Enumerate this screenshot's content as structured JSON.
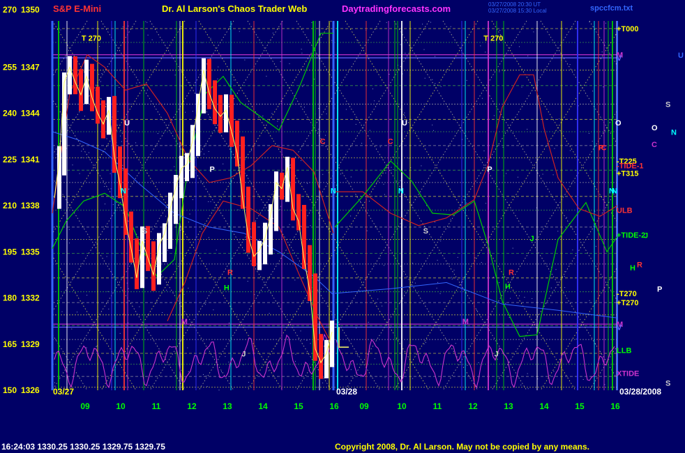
{
  "header": {
    "product": "S&P E-Mini",
    "title": "Dr. Al Larson's Chaos Trader Web",
    "site": "Daytradingforecasts.com",
    "timestamp_1": "03/27/2008 20:30 UT",
    "timestamp_2": "03/27/2008 15:30 Local",
    "file": "spccfcm.txt"
  },
  "footer": {
    "quote": "16:24:03  1330.25 1330.25 1329.75 1329.75",
    "copyright": "Copyright 2008, Dr. Al Larson. May not be copied by any means."
  },
  "chart_data": {
    "type": "line",
    "y_axis": {
      "range": [
        1326,
        1350
      ],
      "price_ticks": [
        "1350",
        "1347",
        "1344",
        "1341",
        "1338",
        "1335",
        "1332",
        "1329",
        "1326"
      ],
      "degree_ticks": [
        "270",
        "255",
        "240",
        "225",
        "210",
        "195",
        "180",
        "165",
        "150"
      ]
    },
    "x_axis": {
      "day1_label": "03/27",
      "day2_label": "03/28",
      "day2_full_label": "03/28/2008",
      "day1_hours": [
        "09",
        "10",
        "11",
        "12",
        "13",
        "14",
        "15",
        "16"
      ],
      "day2_hours": [
        "10",
        "11",
        "12",
        "13",
        "14",
        "15",
        "16"
      ],
      "day2_extra_hour": "09"
    },
    "panel1_labels": [
      {
        "text": "T 270",
        "c": "#ffff00",
        "h": 8.9,
        "p": 1348.7
      },
      {
        "text": "U",
        "c": "#ffffff",
        "h": 10.1,
        "p": 1343.2
      },
      {
        "text": "N",
        "c": "#00ffff",
        "h": 10.0,
        "p": 1338.8
      },
      {
        "text": "S",
        "c": "#cccccc",
        "h": 10.6,
        "p": 1336.2
      },
      {
        "text": "P",
        "c": "#ffffff",
        "h": 12.5,
        "p": 1340.2
      },
      {
        "text": "C",
        "c": "#ff3333",
        "h": 15.6,
        "p": 1342.0
      },
      {
        "text": "N",
        "c": "#00ffff",
        "h": 15.9,
        "p": 1338.8
      },
      {
        "text": "R",
        "c": "#ff3333",
        "h": 13.0,
        "p": 1333.5
      },
      {
        "text": "H",
        "c": "#00ff00",
        "h": 12.9,
        "p": 1332.5
      },
      {
        "text": "M",
        "c": "#cc33cc",
        "h": 11.7,
        "p": 1330.3
      },
      {
        "text": "J",
        "c": "#cccccc",
        "h": 13.4,
        "p": 1328.2
      }
    ],
    "panel2_labels": [
      {
        "text": "T 270",
        "c": "#ffff00",
        "h": 12.3,
        "p": 1348.7
      },
      {
        "text": "U",
        "c": "#ffffff",
        "h": 10.0,
        "p": 1343.2
      },
      {
        "text": "C",
        "c": "#ff3333",
        "h": 9.6,
        "p": 1342.0
      },
      {
        "text": "N",
        "c": "#00ffff",
        "h": 9.9,
        "p": 1338.8
      },
      {
        "text": "S",
        "c": "#cccccc",
        "h": 10.6,
        "p": 1336.2
      },
      {
        "text": "P",
        "c": "#ffffff",
        "h": 12.4,
        "p": 1340.2
      },
      {
        "text": "R",
        "c": "#ff3333",
        "h": 13.0,
        "p": 1333.5
      },
      {
        "text": "H",
        "c": "#00ff00",
        "h": 12.9,
        "p": 1332.6
      },
      {
        "text": "J",
        "c": "#00ff00",
        "h": 13.6,
        "p": 1335.7
      },
      {
        "text": "M",
        "c": "#cc33cc",
        "h": 11.7,
        "p": 1330.3
      },
      {
        "text": "J",
        "c": "#cccccc",
        "h": 12.6,
        "p": 1328.2
      },
      {
        "text": "C",
        "c": "#ff3333",
        "h": 15.6,
        "p": 1341.6
      },
      {
        "text": "N",
        "c": "#00ffff",
        "h": 15.9,
        "p": 1338.8
      }
    ],
    "right_labels": [
      {
        "text": "+T000",
        "c": "#ffff00",
        "p": 1349.5
      },
      {
        "text": "M",
        "c": "#cc33cc",
        "p": 1347.8
      },
      {
        "text": "V",
        "c": "#6666ff",
        "p": 1347.6
      },
      {
        "text": "-T225",
        "c": "#ffff00",
        "p": 1340.9
      },
      {
        "text": "-TIDE-1",
        "c": "#ff3333",
        "p": 1340.6
      },
      {
        "text": "+T315",
        "c": "#ffff00",
        "p": 1340.1
      },
      {
        "text": "ULB",
        "c": "#ff3333",
        "p": 1337.7
      },
      {
        "text": "+TIDE-2",
        "c": "#00ff00",
        "p": 1336.1
      },
      {
        "text": "-T270",
        "c": "#ffff00",
        "p": 1332.3
      },
      {
        "text": "+T270",
        "c": "#ffff00",
        "p": 1331.7
      },
      {
        "text": "M",
        "c": "#cc33cc",
        "p": 1330.3
      },
      {
        "text": "V",
        "c": "#6666ff",
        "p": 1330.1
      },
      {
        "text": "LLB",
        "c": "#00ff00",
        "p": 1328.6
      },
      {
        "text": "XTIDE",
        "c": "#cc33cc",
        "p": 1327.1
      }
    ],
    "outer_labels": [
      {
        "text": "U",
        "c": "#3366ff",
        "x": 972,
        "p": 1347.6
      },
      {
        "text": "S",
        "c": "#cccccc",
        "x": 954,
        "p": 1344.4
      },
      {
        "text": "O",
        "c": "#ffffff",
        "x": 934,
        "p": 1342.9
      },
      {
        "text": "N",
        "c": "#00ffff",
        "x": 962,
        "p": 1342.6
      },
      {
        "text": "C",
        "c": "#cc33cc",
        "x": 934,
        "p": 1341.8
      },
      {
        "text": "J",
        "c": "#00ff00",
        "x": 923,
        "p": 1335.9
      },
      {
        "text": "H",
        "c": "#00ff00",
        "x": 903,
        "p": 1333.8
      },
      {
        "text": "R",
        "c": "#ff3333",
        "x": 913,
        "p": 1334.0
      },
      {
        "text": "P",
        "c": "#ffffff",
        "x": 942,
        "p": 1332.4
      },
      {
        "text": "S",
        "c": "#cccccc",
        "x": 954,
        "p": 1326.3
      }
    ],
    "panel1_extra_labels": [
      {
        "text": "O",
        "c": "#ffffff",
        "x": 882,
        "p": 1343.2
      },
      {
        "text": "P",
        "c": "#ff3333",
        "x": 858,
        "p": 1341.6
      },
      {
        "text": "N",
        "c": "#00ffff",
        "x": 873,
        "p": 1338.8
      }
    ],
    "grid": true
  }
}
